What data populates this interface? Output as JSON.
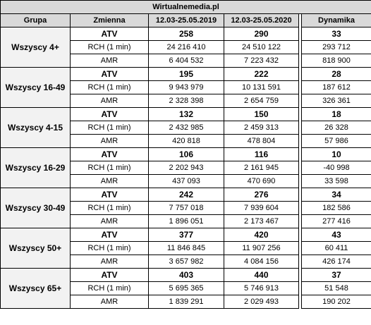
{
  "site_title": "Wirtualnemedia.pl",
  "headers": {
    "group": "Grupa",
    "variable": "Zmienna",
    "period_2019": "12.03-25.05.2019",
    "period_2020": "12.03-25.05.2020",
    "dynamics": "Dynamika"
  },
  "groups": [
    {
      "name": "Wszyscy 4+",
      "rows": [
        {
          "var": "ATV",
          "v2019": "258",
          "v2020": "290",
          "dyn": "33"
        },
        {
          "var": "RCH (1 min)",
          "v2019": "24 216 410",
          "v2020": "24 510 122",
          "dyn": "293 712"
        },
        {
          "var": "AMR",
          "v2019": "6 404 532",
          "v2020": "7 223 432",
          "dyn": "818 900"
        }
      ]
    },
    {
      "name": "Wszyscy 16-49",
      "rows": [
        {
          "var": "ATV",
          "v2019": "195",
          "v2020": "222",
          "dyn": "28"
        },
        {
          "var": "RCH (1 min)",
          "v2019": "9 943 979",
          "v2020": "10 131 591",
          "dyn": "187 612"
        },
        {
          "var": "AMR",
          "v2019": "2 328 398",
          "v2020": "2 654 759",
          "dyn": "326 361"
        }
      ]
    },
    {
      "name": "Wszyscy 4-15",
      "rows": [
        {
          "var": "ATV",
          "v2019": "132",
          "v2020": "150",
          "dyn": "18"
        },
        {
          "var": "RCH (1 min)",
          "v2019": "2 432 985",
          "v2020": "2 459 313",
          "dyn": "26 328"
        },
        {
          "var": "AMR",
          "v2019": "420 818",
          "v2020": "478 804",
          "dyn": "57 986"
        }
      ]
    },
    {
      "name": "Wszyscy 16-29",
      "rows": [
        {
          "var": "ATV",
          "v2019": "106",
          "v2020": "116",
          "dyn": "10"
        },
        {
          "var": "RCH (1 min)",
          "v2019": "2 202 943",
          "v2020": "2 161 945",
          "dyn": "-40 998"
        },
        {
          "var": "AMR",
          "v2019": "437 093",
          "v2020": "470 690",
          "dyn": "33 598"
        }
      ]
    },
    {
      "name": "Wszyscy 30-49",
      "rows": [
        {
          "var": "ATV",
          "v2019": "242",
          "v2020": "276",
          "dyn": "34"
        },
        {
          "var": "RCH (1 min)",
          "v2019": "7 757 018",
          "v2020": "7 939 604",
          "dyn": "182 586"
        },
        {
          "var": "AMR",
          "v2019": "1 896 051",
          "v2020": "2 173 467",
          "dyn": "277 416"
        }
      ]
    },
    {
      "name": "Wszyscy 50+",
      "rows": [
        {
          "var": "ATV",
          "v2019": "377",
          "v2020": "420",
          "dyn": "43"
        },
        {
          "var": "RCH (1 min)",
          "v2019": "11 846 845",
          "v2020": "11 907 256",
          "dyn": "60 411"
        },
        {
          "var": "AMR",
          "v2019": "3 657 982",
          "v2020": "4 084 156",
          "dyn": "426 174"
        }
      ]
    },
    {
      "name": "Wszyscy 65+",
      "rows": [
        {
          "var": "ATV",
          "v2019": "403",
          "v2020": "440",
          "dyn": "37"
        },
        {
          "var": "RCH (1 min)",
          "v2019": "5 695 365",
          "v2020": "5 746 913",
          "dyn": "51 548"
        },
        {
          "var": "AMR",
          "v2019": "1 839 291",
          "v2020": "2 029 493",
          "dyn": "190 202"
        }
      ]
    }
  ]
}
